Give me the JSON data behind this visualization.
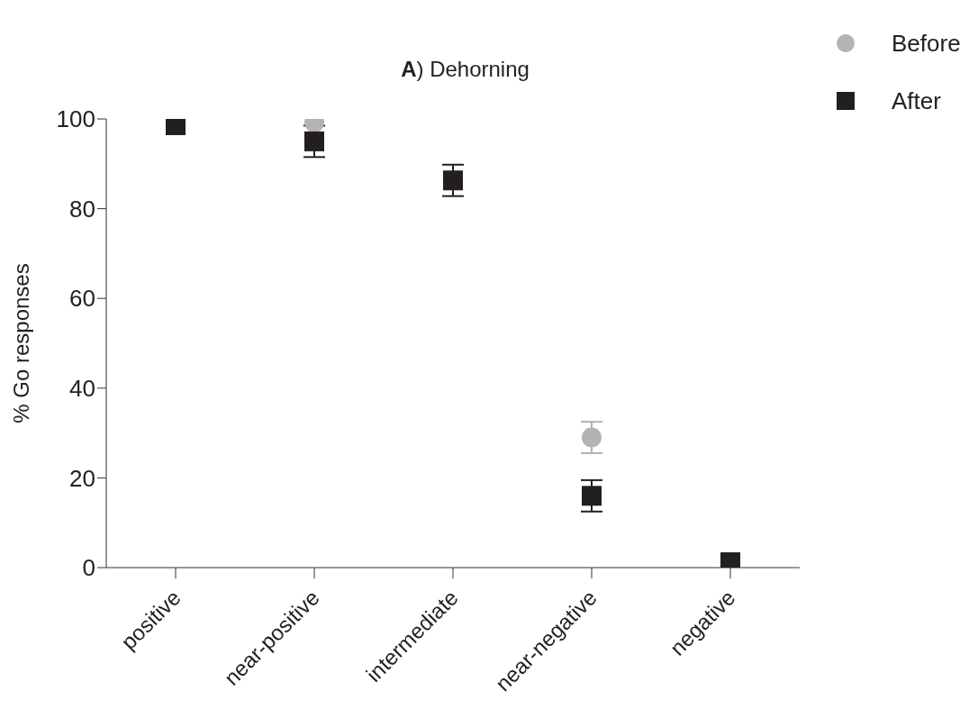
{
  "chart_data": {
    "type": "scatter",
    "title": "A) Dehorning",
    "ylabel": "% Go responses",
    "categories": [
      "positive",
      "near-positive",
      "intermediate",
      "near-negative",
      "negative"
    ],
    "series": [
      {
        "name": "Before",
        "color": "#b3b3b3",
        "marker": "circle",
        "values": [
          null,
          99.2,
          null,
          29,
          null
        ],
        "errors": [
          null,
          null,
          null,
          3.5,
          null
        ]
      },
      {
        "name": "After",
        "color": "#231f20",
        "marker": "square",
        "values": [
          98.6,
          95,
          86.3,
          16,
          1.2
        ],
        "errors": [
          null,
          3.5,
          3.5,
          3.5,
          null
        ]
      }
    ],
    "ylim": [
      0,
      100
    ],
    "yticks": [
      0,
      20,
      40,
      60,
      80,
      100
    ],
    "grid": false,
    "legend": "top right"
  }
}
